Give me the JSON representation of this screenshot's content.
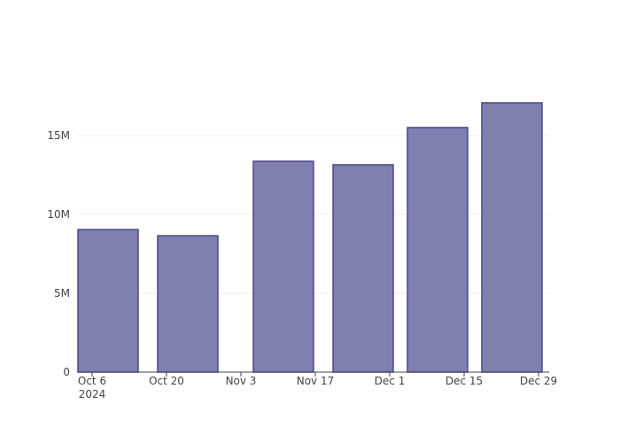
{
  "chart_data": {
    "type": "bar",
    "x": [
      "2024-10-09",
      "2024-10-24",
      "2024-11-11",
      "2024-11-26",
      "2024-12-10",
      "2024-12-24"
    ],
    "values": [
      9040000,
      8650000,
      13370000,
      13150000,
      15510000,
      17080000
    ],
    "color": "#7f7fb0",
    "edge_color": "#4a4a85",
    "xlim": [
      "2024-10-03T08:00",
      "2024-12-31T00:00"
    ],
    "xticks": [
      {
        "value": "2024-10-06",
        "label": "Oct 6\n2024"
      },
      {
        "value": "2024-10-20",
        "label": "Oct 20"
      },
      {
        "value": "2024-11-03",
        "label": "Nov 3"
      },
      {
        "value": "2024-11-17",
        "label": "Nov 17"
      },
      {
        "value": "2024-12-01",
        "label": "Dec 1"
      },
      {
        "value": "2024-12-15",
        "label": "Dec 15"
      },
      {
        "value": "2024-12-29",
        "label": "Dec 29"
      }
    ],
    "ylim": [
      0,
      17980000
    ],
    "yticks": [
      0,
      {
        "value": 5000000,
        "label": "5M"
      },
      {
        "value": 10000000,
        "label": "10M"
      },
      {
        "value": 15000000,
        "label": "15M"
      }
    ],
    "grid": true
  }
}
